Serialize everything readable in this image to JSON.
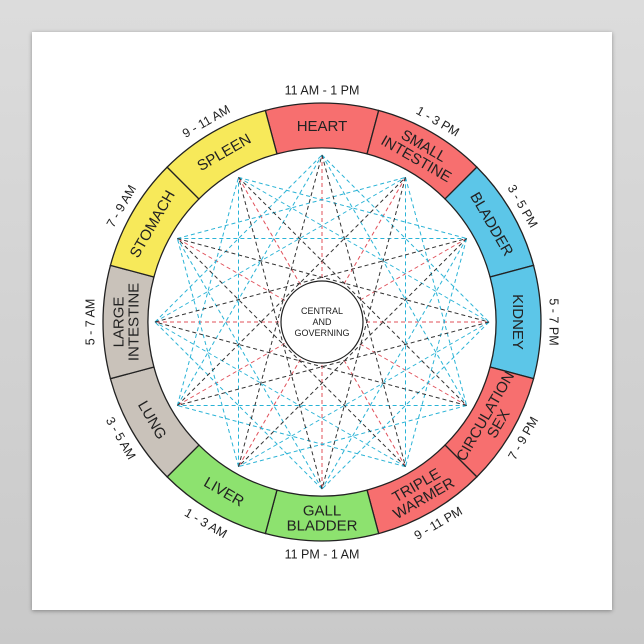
{
  "center": {
    "lines": [
      "CENTRAL",
      "AND",
      "GOVERNING"
    ]
  },
  "colors": {
    "fire": "#f76f6f",
    "earth": "#f7e95a",
    "water": "#5cc6e8",
    "metal": "#c9c2ba",
    "wood": "#8de26f"
  },
  "segments": [
    {
      "label_lines": [
        "HEART"
      ],
      "time": "11 AM - 1 PM",
      "color": "#f76f6f"
    },
    {
      "label_lines": [
        "SMALL",
        "INTESTINE"
      ],
      "time": "1 - 3 PM",
      "color": "#f76f6f"
    },
    {
      "label_lines": [
        "BLADDER"
      ],
      "time": "3 - 5 PM",
      "color": "#5cc6e8"
    },
    {
      "label_lines": [
        "KIDNEY"
      ],
      "time": "5 - 7 PM",
      "color": "#5cc6e8"
    },
    {
      "label_lines": [
        "CIRCULATION",
        "SEX"
      ],
      "time": "7 - 9 PM",
      "color": "#f76f6f"
    },
    {
      "label_lines": [
        "TRIPLE",
        "WARMER"
      ],
      "time": "9 - 11 PM",
      "color": "#f76f6f"
    },
    {
      "label_lines": [
        "GALL",
        "BLADDER"
      ],
      "time": "11 PM - 1 AM",
      "color": "#8de26f"
    },
    {
      "label_lines": [
        "LIVER"
      ],
      "time": "1 - 3 AM",
      "color": "#8de26f"
    },
    {
      "label_lines": [
        "LUNG"
      ],
      "time": "3 - 5 AM",
      "color": "#c9c2ba"
    },
    {
      "label_lines": [
        "LARGE",
        "INTESTINE"
      ],
      "time": "5 - 7 AM",
      "color": "#c9c2ba"
    },
    {
      "label_lines": [
        "STOMACH"
      ],
      "time": "7 - 9 AM",
      "color": "#f7e95a"
    },
    {
      "label_lines": [
        "SPLEEN"
      ],
      "time": "9 - 11 AM",
      "color": "#f7e95a"
    }
  ],
  "star_line_colors": {
    "step5": "#333333",
    "step4": "#2ab3d6",
    "step3": "#2ab3d6",
    "step6": "#e0505a"
  }
}
